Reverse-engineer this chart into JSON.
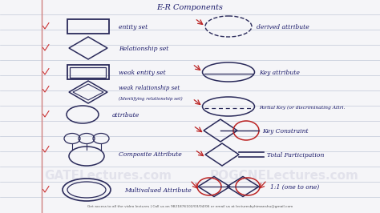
{
  "title": "E-R Components",
  "bg_color": "#f5f5f8",
  "line_color": "#c0c8d8",
  "shape_color": "#2a2a5a",
  "text_color": "#1a1a6a",
  "red_color": "#bb2222",
  "margin_color": "#d08080",
  "footer": "Get access to all the video lectures | Call us on 9821876102/03/04/06 or email us at lecturesbyhimanshu@gmail.com",
  "wm1": "GATELectures.com",
  "wm2": "POGCNELectures.com"
}
